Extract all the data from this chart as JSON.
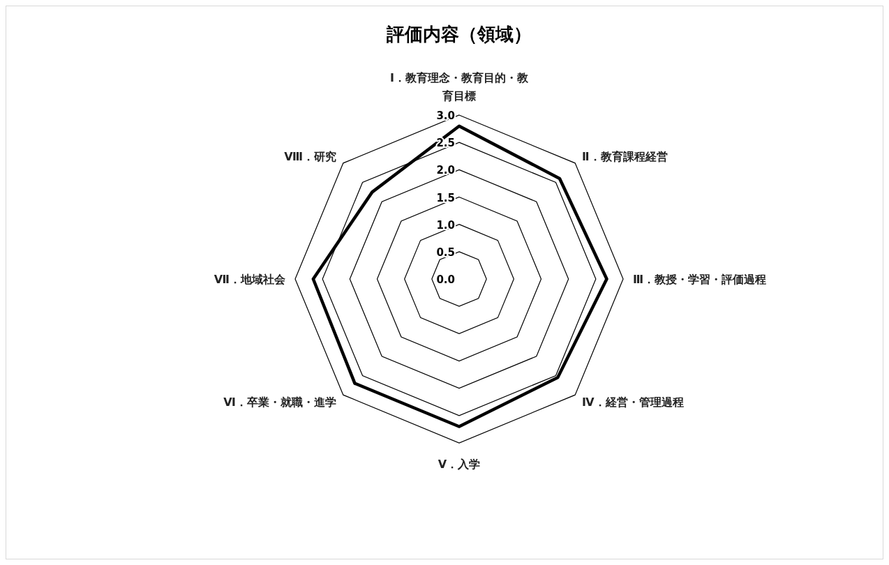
{
  "chart_data": {
    "type": "radar",
    "title": "評価内容（領域）",
    "categories": [
      "Ⅰ．教育理念・教育目的・教育目標",
      "Ⅱ．教育課程経営",
      "Ⅲ．教授・学習・評価過程",
      "Ⅳ．経営・管理過程",
      "Ⅴ．入学",
      "Ⅵ．卒業・就職・進学",
      "Ⅶ．地域社会",
      "Ⅷ．研究"
    ],
    "series": [
      {
        "color": "#000000",
        "values": [
          2.8,
          2.6,
          2.7,
          2.55,
          2.7,
          2.7,
          2.67,
          2.25
        ]
      }
    ],
    "ylim": [
      0,
      3
    ],
    "yticks": [
      {
        "value": 0,
        "label": "0.0"
      },
      {
        "value": 0.5,
        "label": "0.5"
      },
      {
        "value": 1,
        "label": "1.0"
      },
      {
        "value": 1.5,
        "label": "1.5"
      },
      {
        "value": 2,
        "label": "2.0"
      },
      {
        "value": 2.5,
        "label": "2.5"
      },
      {
        "value": 3,
        "label": "3.0"
      }
    ],
    "marker": "none"
  }
}
